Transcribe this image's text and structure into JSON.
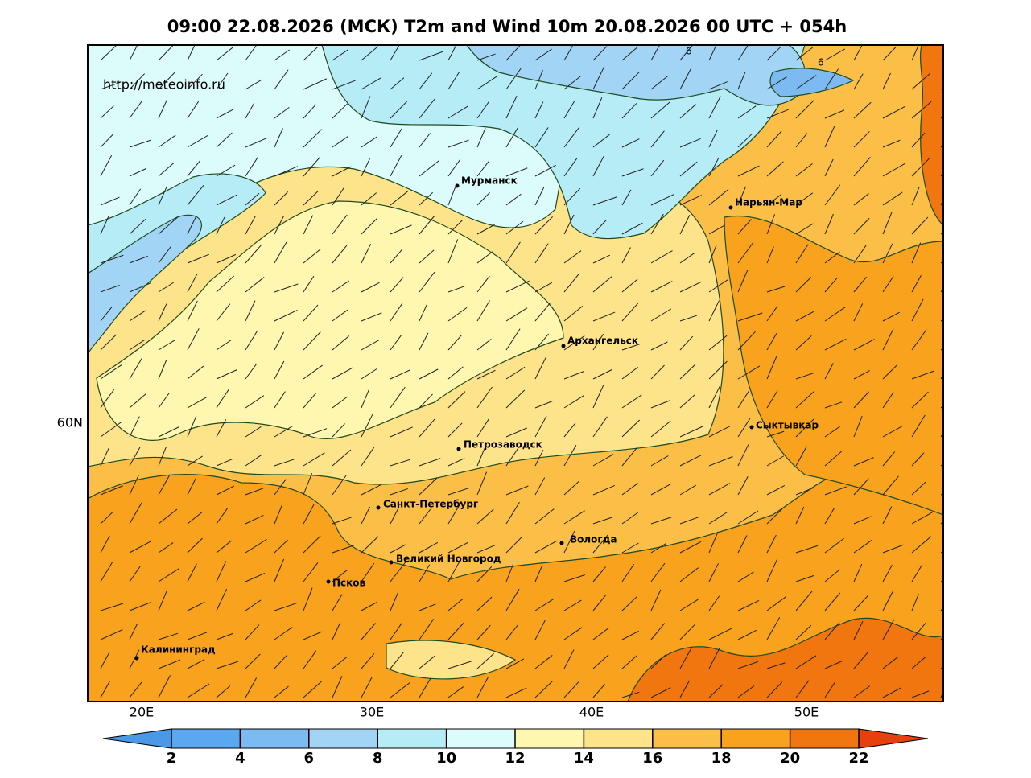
{
  "header": {
    "title": "09:00 22.08.2026 (МСК) T2m and Wind 10m 20.08.2026 00 UTC + 054h"
  },
  "map": {
    "source": "http://meteoinfo.ru",
    "cities": [
      "Мурманск",
      "Нарьян-Мар",
      "Архангельск",
      "Сыктывкар",
      "Петрозаводск",
      "Санкт-Петербург",
      "Вологда",
      "Великий Новгород",
      "Псков",
      "Калининград"
    ],
    "lon_labels": [
      "20E",
      "30E",
      "40E",
      "50E"
    ],
    "lat_labels": [
      "60N"
    ],
    "contour_labels": [
      "6",
      "6"
    ]
  },
  "colorbar": {
    "ticks": [
      2,
      4,
      6,
      8,
      10,
      12,
      14,
      16,
      18,
      20,
      22
    ],
    "colors": [
      "#4a98e8",
      "#5aa8f0",
      "#7cbaf2",
      "#a2d4f6",
      "#b6ecf6",
      "#dcfcfb",
      "#fff6b0",
      "#fde38a",
      "#fbbf48",
      "#f8a21e",
      "#f27610",
      "#e8400c"
    ]
  }
}
